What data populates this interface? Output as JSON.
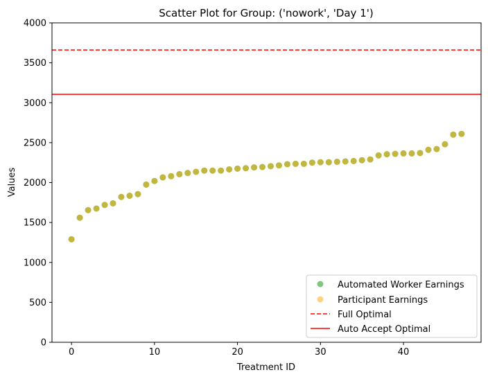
{
  "chart_data": {
    "type": "scatter",
    "title": "Scatter Plot for Group: ('nowork', 'Day 1')",
    "xlabel": "Treatment ID",
    "ylabel": "Values",
    "xlim": [
      -2.35,
      49.35
    ],
    "ylim": [
      0,
      4000
    ],
    "x_ticks": [
      0,
      10,
      20,
      30,
      40
    ],
    "y_ticks": [
      0,
      500,
      1000,
      1500,
      2000,
      2500,
      3000,
      3500,
      4000
    ],
    "grid": false,
    "legend_position": "lower-right",
    "x": [
      0,
      1,
      2,
      3,
      4,
      5,
      6,
      7,
      8,
      9,
      10,
      11,
      12,
      13,
      14,
      15,
      16,
      17,
      18,
      19,
      20,
      21,
      22,
      23,
      24,
      25,
      26,
      27,
      28,
      29,
      30,
      31,
      32,
      33,
      34,
      35,
      36,
      37,
      38,
      39,
      40,
      41,
      42,
      43,
      44,
      45,
      46,
      47
    ],
    "series": [
      {
        "name": "Automated Worker Earnings",
        "color": "#2ca02c",
        "alpha": 0.6,
        "values": [
          1290,
          1560,
          1655,
          1675,
          1720,
          1740,
          1820,
          1835,
          1855,
          1975,
          2020,
          2065,
          2080,
          2105,
          2120,
          2135,
          2150,
          2150,
          2150,
          2165,
          2175,
          2180,
          2190,
          2195,
          2205,
          2215,
          2230,
          2235,
          2235,
          2250,
          2255,
          2255,
          2260,
          2265,
          2270,
          2280,
          2290,
          2340,
          2355,
          2360,
          2365,
          2365,
          2370,
          2410,
          2420,
          2480,
          2600,
          2610
        ]
      },
      {
        "name": "Participant Earnings",
        "color": "#ffa500",
        "alpha": 0.5,
        "values": [
          1290,
          1560,
          1655,
          1675,
          1720,
          1740,
          1820,
          1835,
          1855,
          1975,
          2020,
          2065,
          2080,
          2105,
          2120,
          2135,
          2150,
          2150,
          2150,
          2165,
          2175,
          2180,
          2190,
          2195,
          2205,
          2215,
          2230,
          2235,
          2235,
          2250,
          2255,
          2255,
          2260,
          2265,
          2270,
          2280,
          2290,
          2340,
          2355,
          2360,
          2365,
          2365,
          2370,
          2410,
          2420,
          2480,
          2600,
          2610
        ]
      }
    ],
    "reference_lines": [
      {
        "name": "Full Optimal",
        "value": 3660,
        "color": "#ff0000",
        "style": "dashed"
      },
      {
        "name": "Auto Accept Optimal",
        "value": 3105,
        "color": "#ff0000",
        "style": "solid"
      }
    ]
  }
}
